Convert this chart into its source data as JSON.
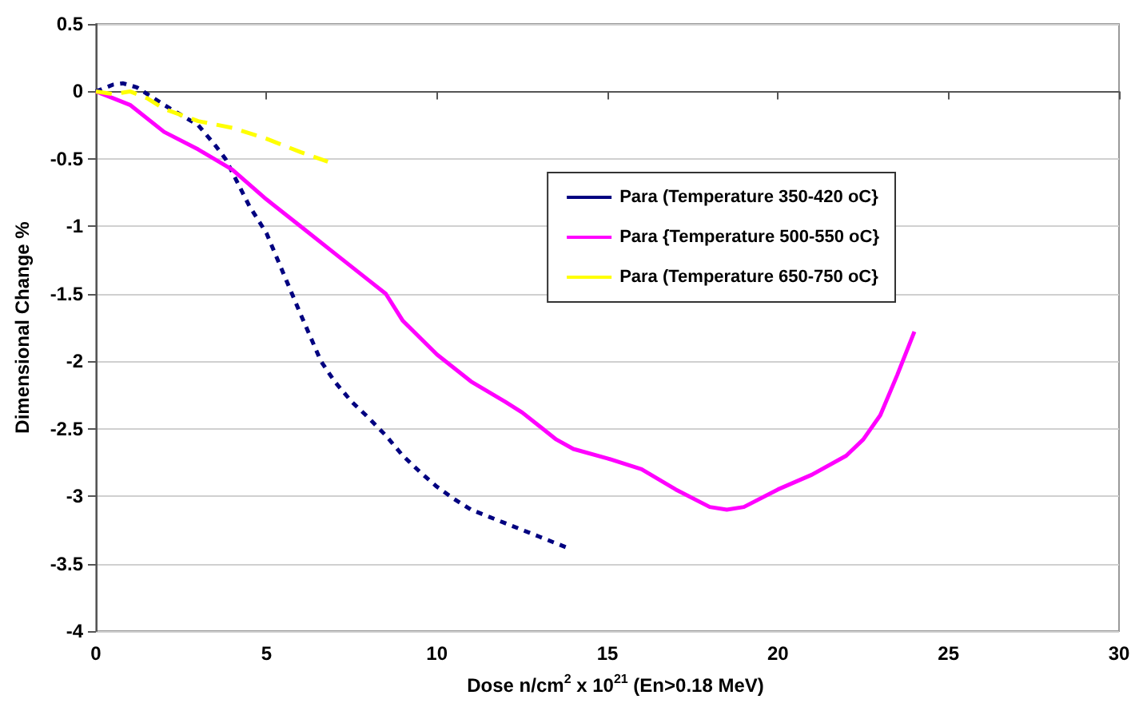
{
  "chart_data": {
    "type": "line",
    "xlabel": "Dose n/cm$^{2}$ x 10$^{21}$ (En>0.18 MeV)",
    "ylabel": "Dimensional Change %",
    "xlim": [
      0,
      30
    ],
    "xticks": [
      0,
      5,
      10,
      15,
      20,
      25,
      30
    ],
    "ylim": [
      -4,
      0.5
    ],
    "yticks": [
      0.5,
      0,
      -0.5,
      -1,
      -1.5,
      -2,
      -2.5,
      -3,
      -3.5,
      -4
    ],
    "grid": "y",
    "legend": "right",
    "marker": "none",
    "series": [
      {
        "name": "Para (Temperature 350-420 oC}",
        "color": "#000080",
        "line_style": "dotted",
        "x": [
          0,
          0.5,
          0.8,
          1.2,
          2,
          3,
          3.5,
          3.8,
          4,
          4.5,
          5,
          5.5,
          6,
          6.6,
          7,
          7.5,
          8,
          8.5,
          9,
          9.5,
          10,
          10.5,
          11,
          12,
          13,
          13.8
        ],
        "values": [
          0,
          0.05,
          0.06,
          0.03,
          -0.1,
          -0.25,
          -0.4,
          -0.5,
          -0.6,
          -0.85,
          -1.05,
          -1.35,
          -1.65,
          -2,
          -2.15,
          -2.3,
          -2.42,
          -2.55,
          -2.7,
          -2.82,
          -2.93,
          -3.02,
          -3.1,
          -3.2,
          -3.3,
          -3.38
        ]
      },
      {
        "name": "Para {Temperature 500-550 oC}",
        "color": "#ff00ff",
        "line_style": "solid",
        "x": [
          0,
          0.5,
          1,
          2,
          3,
          4,
          5,
          6,
          7,
          8,
          8.5,
          9,
          10,
          11,
          12,
          12.5,
          13,
          13.5,
          14,
          15,
          16,
          17,
          18,
          18.5,
          19,
          20,
          21,
          22,
          22.5,
          23,
          23.5,
          24
        ],
        "values": [
          0,
          -0.05,
          -0.1,
          -0.3,
          -0.43,
          -0.58,
          -0.8,
          -1,
          -1.2,
          -1.4,
          -1.5,
          -1.7,
          -1.95,
          -2.15,
          -2.3,
          -2.38,
          -2.48,
          -2.58,
          -2.65,
          -2.72,
          -2.8,
          -2.95,
          -3.08,
          -3.1,
          -3.08,
          -2.95,
          -2.84,
          -2.7,
          -2.58,
          -2.4,
          -2.1,
          -1.78
        ]
      },
      {
        "name": "Para (Temperature 650-750 oC}",
        "color": "#ffff00",
        "line_style": "dashed",
        "x": [
          0,
          0.5,
          1,
          1.5,
          2,
          3,
          4,
          5,
          6,
          6.8
        ],
        "values": [
          0,
          -0.02,
          0,
          -0.05,
          -0.13,
          -0.22,
          -0.27,
          -0.35,
          -0.45,
          -0.52
        ]
      }
    ]
  }
}
